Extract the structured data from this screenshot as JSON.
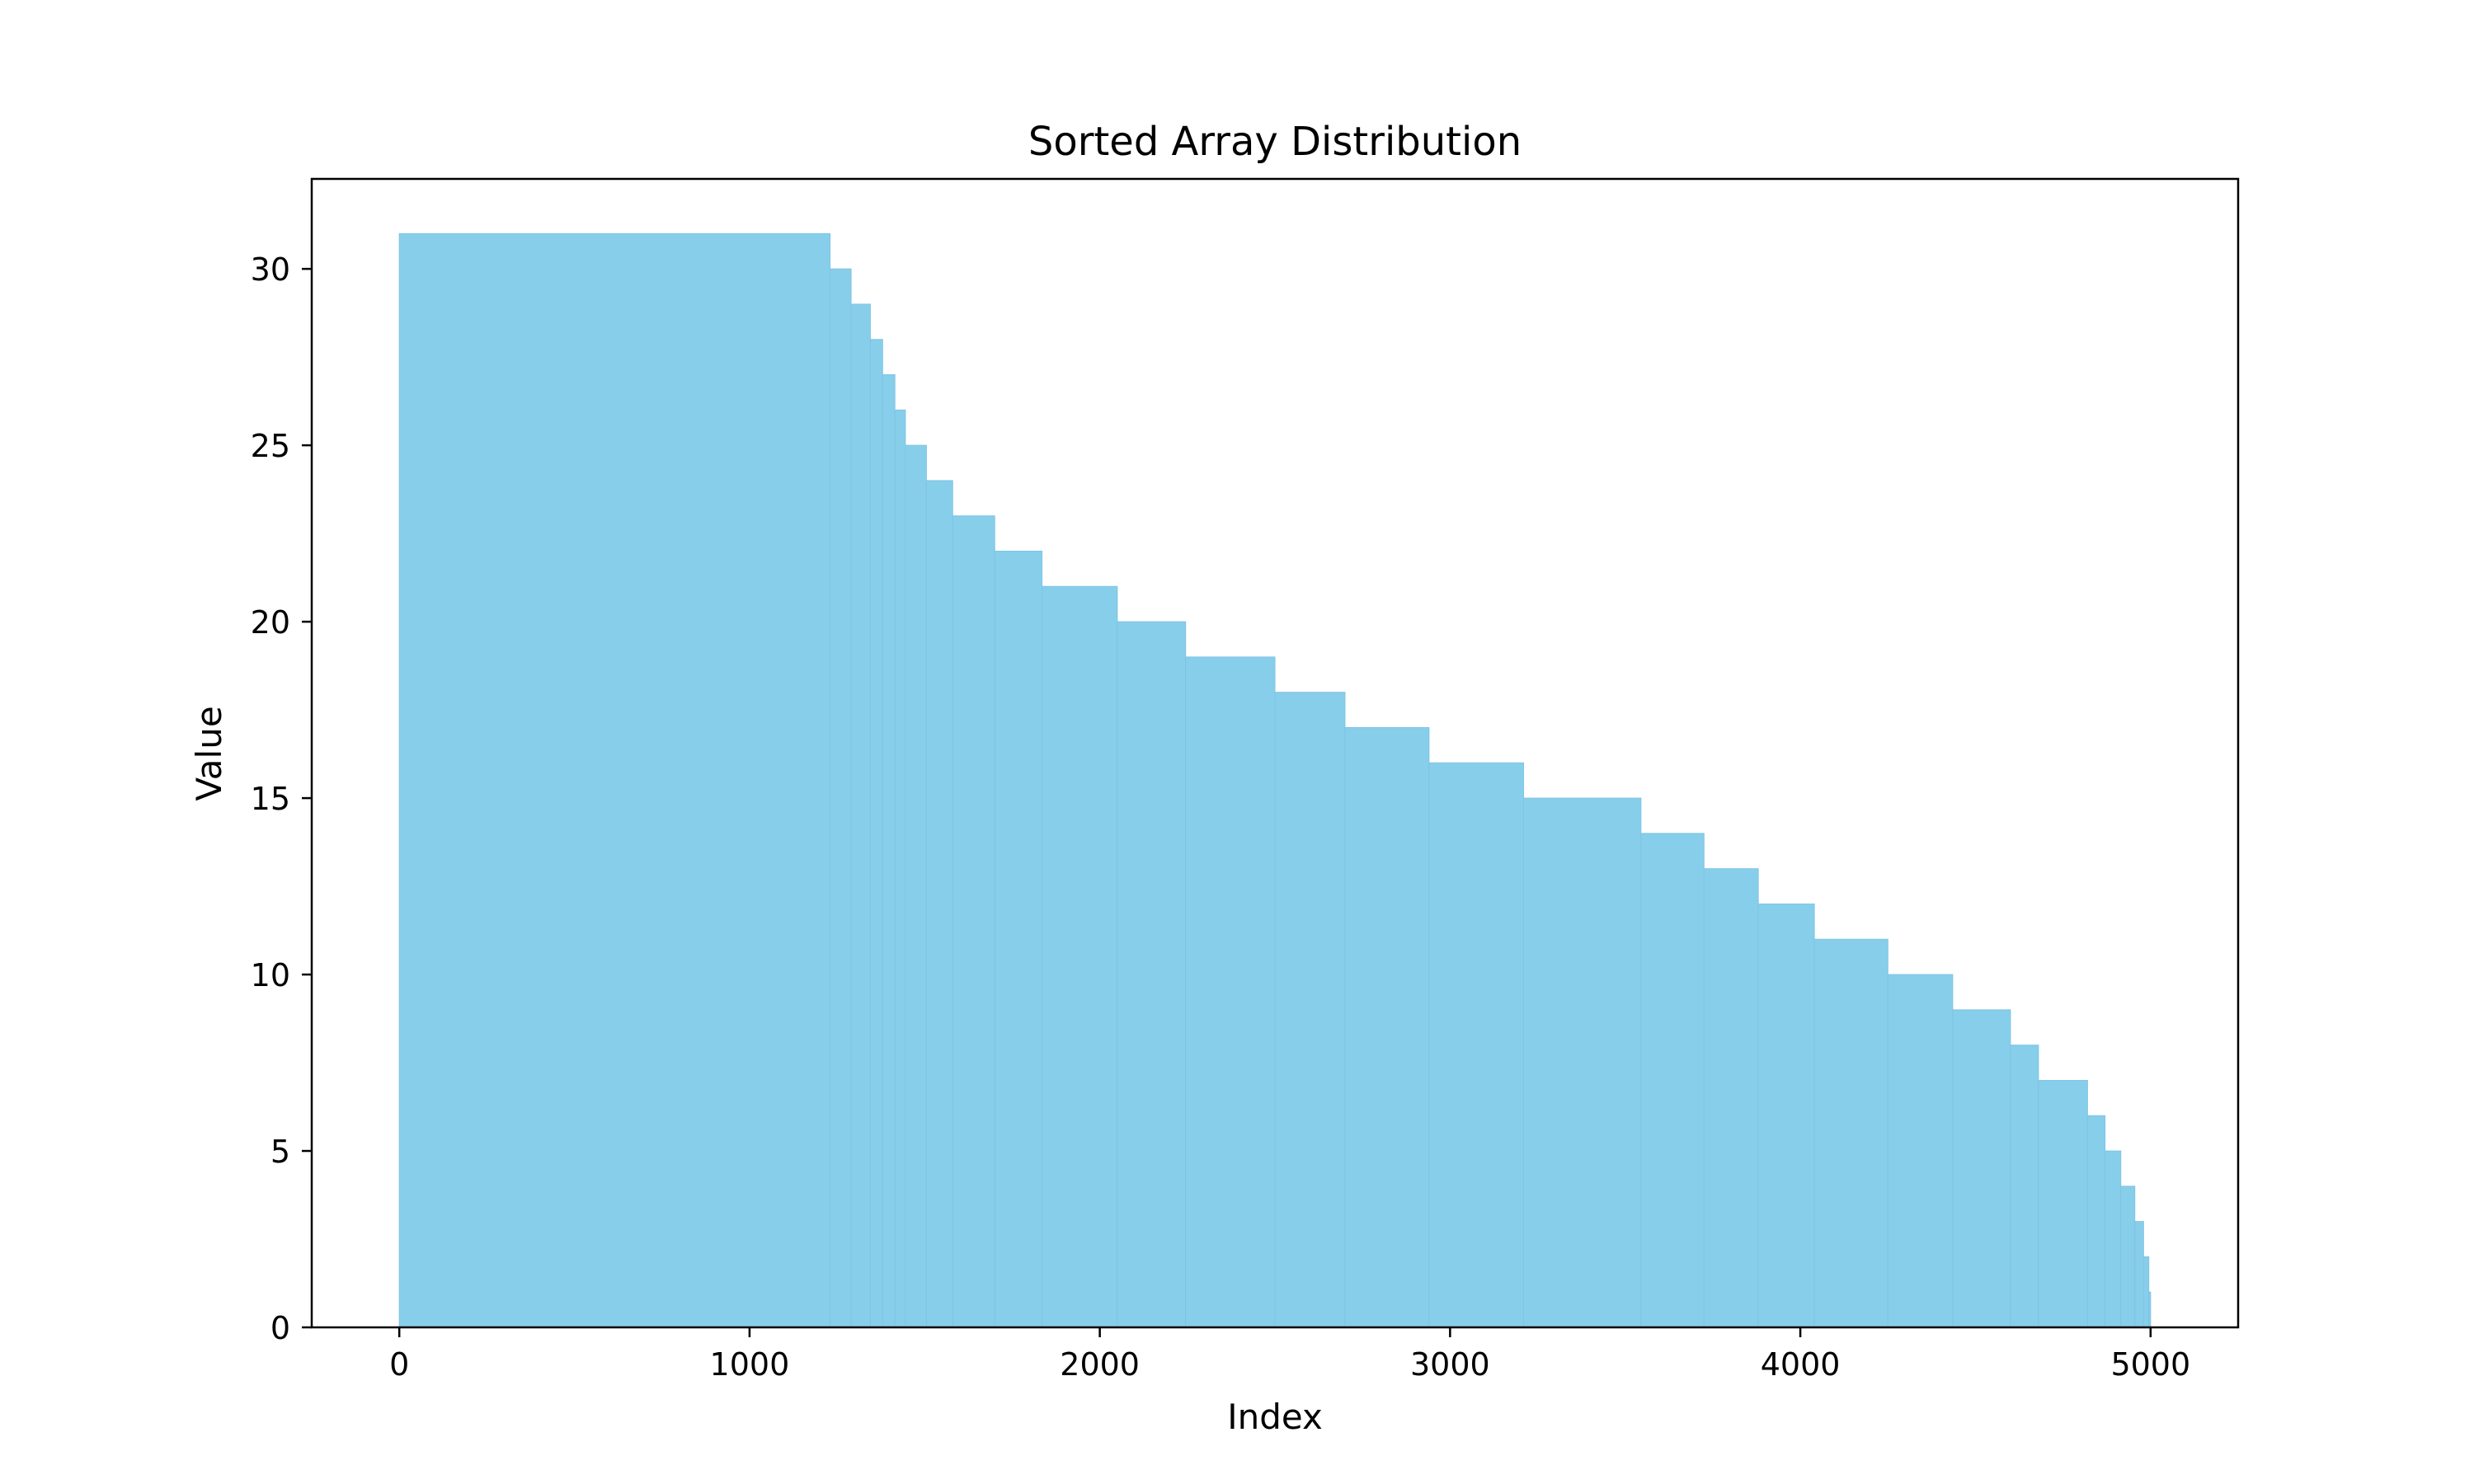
{
  "chart_data": {
    "type": "bar",
    "title": "Sorted Array Distribution",
    "xlabel": "Index",
    "ylabel": "Value",
    "xlim": [
      -250,
      5250
    ],
    "ylim": [
      0,
      32.55
    ],
    "xticks": [
      0,
      1000,
      2000,
      3000,
      4000,
      5000
    ],
    "yticks": [
      0,
      5,
      10,
      15,
      20,
      25,
      30
    ],
    "grid": false,
    "legend": "none",
    "bar_color": "#87ceeb",
    "bar_edge_color": "#7fc4e4",
    "index_count": 5000,
    "series": [
      {
        "runs": [
          {
            "start": 0,
            "end": 1230,
            "value": 31
          },
          {
            "start": 1230,
            "end": 1290,
            "value": 30
          },
          {
            "start": 1290,
            "end": 1345,
            "value": 29
          },
          {
            "start": 1345,
            "end": 1380,
            "value": 28
          },
          {
            "start": 1380,
            "end": 1415,
            "value": 27
          },
          {
            "start": 1415,
            "end": 1445,
            "value": 26
          },
          {
            "start": 1445,
            "end": 1505,
            "value": 25
          },
          {
            "start": 1505,
            "end": 1580,
            "value": 24
          },
          {
            "start": 1580,
            "end": 1700,
            "value": 23
          },
          {
            "start": 1700,
            "end": 1835,
            "value": 22
          },
          {
            "start": 1835,
            "end": 2050,
            "value": 21
          },
          {
            "start": 2050,
            "end": 2245,
            "value": 20
          },
          {
            "start": 2245,
            "end": 2500,
            "value": 19
          },
          {
            "start": 2500,
            "end": 2700,
            "value": 18
          },
          {
            "start": 2700,
            "end": 2940,
            "value": 17
          },
          {
            "start": 2940,
            "end": 3210,
            "value": 16
          },
          {
            "start": 3210,
            "end": 3545,
            "value": 15
          },
          {
            "start": 3545,
            "end": 3725,
            "value": 14
          },
          {
            "start": 3725,
            "end": 3880,
            "value": 13
          },
          {
            "start": 3880,
            "end": 4040,
            "value": 12
          },
          {
            "start": 4040,
            "end": 4250,
            "value": 11
          },
          {
            "start": 4250,
            "end": 4435,
            "value": 10
          },
          {
            "start": 4435,
            "end": 4600,
            "value": 9
          },
          {
            "start": 4600,
            "end": 4680,
            "value": 8
          },
          {
            "start": 4680,
            "end": 4820,
            "value": 7
          },
          {
            "start": 4820,
            "end": 4870,
            "value": 6
          },
          {
            "start": 4870,
            "end": 4915,
            "value": 5
          },
          {
            "start": 4915,
            "end": 4955,
            "value": 4
          },
          {
            "start": 4955,
            "end": 4980,
            "value": 3
          },
          {
            "start": 4980,
            "end": 4995,
            "value": 2
          },
          {
            "start": 4995,
            "end": 5000,
            "value": 1
          }
        ]
      }
    ]
  }
}
